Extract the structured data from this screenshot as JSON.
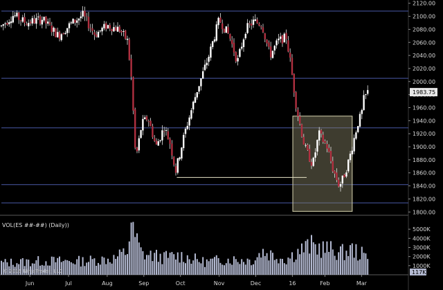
{
  "chart_data": [
    {
      "type": "candlestick",
      "symbol": "ES ##-##",
      "ylim": [
        1795,
        2125
      ],
      "y_ticks": [
        "2120.00",
        "2100.00",
        "2080.00",
        "2060.00",
        "2040.00",
        "2020.00",
        "2000.00",
        "1980.00",
        "1960.00",
        "1940.00",
        "1920.00",
        "1900.00",
        "1880.00",
        "1860.00",
        "1840.00",
        "1820.00",
        "1800.00"
      ],
      "y_tick_values": [
        2120,
        2100,
        2080,
        2060,
        2040,
        2020,
        2000,
        1980,
        1960,
        1940,
        1920,
        1900,
        1880,
        1860,
        1840,
        1820,
        1800
      ],
      "x_ticks": [
        "Jun",
        "Jul",
        "Aug",
        "Sep",
        "Oct",
        "Nov",
        "Dec",
        "16",
        "Feb",
        "Mar"
      ],
      "last_price": "1983.75",
      "last_price_value": 1983.75,
      "horizontal_lines": [
        2108,
        2005,
        1929,
        1842,
        1814
      ],
      "up_color": "#ffffff",
      "down_color": "#b03040",
      "line_color": "#4a5aa8",
      "box": {
        "x_from": 0.716,
        "x_to": 0.862,
        "y_top": 1947,
        "y_bottom": 1801
      },
      "trend_line": {
        "x_from": 0.431,
        "x_to": 0.75,
        "y": 1853
      },
      "anchors": [
        [
          0,
          2085
        ],
        [
          0.03,
          2102
        ],
        [
          0.06,
          2090
        ],
        [
          0.1,
          2096
        ],
        [
          0.14,
          2070
        ],
        [
          0.17,
          2088
        ],
        [
          0.2,
          2102
        ],
        [
          0.23,
          2072
        ],
        [
          0.26,
          2086
        ],
        [
          0.29,
          2080
        ],
        [
          0.31,
          2062
        ],
        [
          0.32,
          2000
        ],
        [
          0.33,
          1880
        ],
        [
          0.345,
          1935
        ],
        [
          0.36,
          1945
        ],
        [
          0.38,
          1900
        ],
        [
          0.4,
          1930
        ],
        [
          0.415,
          1905
        ],
        [
          0.428,
          1862
        ],
        [
          0.45,
          1920
        ],
        [
          0.48,
          1985
        ],
        [
          0.51,
          2040
        ],
        [
          0.535,
          2095
        ],
        [
          0.56,
          2070
        ],
        [
          0.58,
          2030
        ],
        [
          0.6,
          2080
        ],
        [
          0.62,
          2092
        ],
        [
          0.64,
          2088
        ],
        [
          0.66,
          2040
        ],
        [
          0.68,
          2062
        ],
        [
          0.7,
          2068
        ],
        [
          0.71,
          2030
        ],
        [
          0.725,
          1960
        ],
        [
          0.745,
          1900
        ],
        [
          0.765,
          1872
        ],
        [
          0.78,
          1920
        ],
        [
          0.8,
          1900
        ],
        [
          0.815,
          1865
        ],
        [
          0.83,
          1840
        ],
        [
          0.84,
          1852
        ],
        [
          0.855,
          1882
        ],
        [
          0.875,
          1935
        ],
        [
          0.885,
          1950
        ],
        [
          0.89,
          1972
        ],
        [
          0.9,
          1983.75
        ]
      ],
      "x_tick_positions": [
        0.07,
        0.165,
        0.26,
        0.35,
        0.44,
        0.535,
        0.625,
        0.715,
        0.795,
        0.885
      ]
    },
    {
      "type": "bar",
      "title": "VOL(ES ##-##) (Daily))",
      "ylim": [
        0,
        6000
      ],
      "y_ticks": [
        "5000K",
        "4000K",
        "3000K",
        "2000K",
        "1000K"
      ],
      "y_tick_values": [
        5000,
        4000,
        3000,
        2000,
        1000
      ],
      "last_volume": "117K",
      "bar_color": "#b4bad2",
      "profile": [
        [
          0,
          1300
        ],
        [
          0.1,
          1500
        ],
        [
          0.2,
          1500
        ],
        [
          0.28,
          1800
        ],
        [
          0.31,
          2600
        ],
        [
          0.318,
          5800
        ],
        [
          0.33,
          4000
        ],
        [
          0.345,
          2300
        ],
        [
          0.4,
          1900
        ],
        [
          0.44,
          2100
        ],
        [
          0.5,
          1400
        ],
        [
          0.55,
          1700
        ],
        [
          0.62,
          1600
        ],
        [
          0.64,
          2600
        ],
        [
          0.68,
          2000
        ],
        [
          0.7,
          1700
        ],
        [
          0.73,
          2600
        ],
        [
          0.76,
          3200
        ],
        [
          0.8,
          2800
        ],
        [
          0.84,
          2400
        ],
        [
          0.86,
          2800
        ],
        [
          0.9,
          1900
        ]
      ]
    }
  ],
  "footer": {
    "copyright": "© 2016 NinjaTrader, LLC"
  }
}
